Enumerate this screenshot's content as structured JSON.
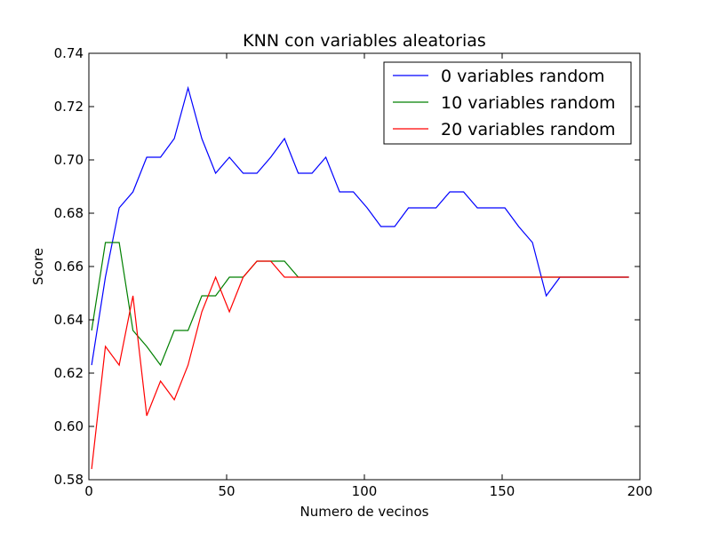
{
  "chart_data": {
    "type": "line",
    "title": "KNN con variables aleatorias",
    "xlabel": "Numero de vecinos",
    "ylabel": "Score",
    "xlim": [
      0,
      200
    ],
    "ylim": [
      0.58,
      0.74
    ],
    "xticks": [
      0,
      50,
      100,
      150,
      200
    ],
    "yticks": [
      0.58,
      0.6,
      0.62,
      0.64,
      0.66,
      0.68,
      0.7,
      0.72,
      0.74
    ],
    "xtick_labels": [
      "0",
      "50",
      "100",
      "150",
      "200"
    ],
    "ytick_labels": [
      "0.58",
      "0.60",
      "0.62",
      "0.64",
      "0.66",
      "0.68",
      "0.70",
      "0.72",
      "0.74"
    ],
    "grid": false,
    "legend_position": "top-right",
    "x": [
      1,
      6,
      11,
      16,
      21,
      26,
      31,
      36,
      41,
      46,
      51,
      56,
      61,
      66,
      71,
      76,
      81,
      86,
      91,
      96,
      101,
      106,
      111,
      116,
      121,
      126,
      131,
      136,
      141,
      146,
      151,
      156,
      161,
      166,
      171,
      176,
      181,
      186,
      191,
      196
    ],
    "series": [
      {
        "name": "0 variables random",
        "color": "#0000ff",
        "values": [
          0.623,
          0.656,
          0.682,
          0.688,
          0.701,
          0.701,
          0.708,
          0.727,
          0.708,
          0.695,
          0.701,
          0.695,
          0.695,
          0.701,
          0.708,
          0.695,
          0.695,
          0.701,
          0.688,
          0.688,
          0.682,
          0.675,
          0.675,
          0.682,
          0.682,
          0.682,
          0.688,
          0.688,
          0.682,
          0.682,
          0.682,
          0.675,
          0.669,
          0.649,
          0.656,
          0.656,
          0.656,
          0.656,
          0.656,
          0.656
        ]
      },
      {
        "name": "10 variables random",
        "color": "#008000",
        "values": [
          0.636,
          0.669,
          0.669,
          0.636,
          0.63,
          0.623,
          0.636,
          0.636,
          0.649,
          0.649,
          0.656,
          0.656,
          0.662,
          0.662,
          0.662,
          0.656,
          0.656,
          0.656,
          0.656,
          0.656,
          0.656,
          0.656,
          0.656,
          0.656,
          0.656,
          0.656,
          0.656,
          0.656,
          0.656,
          0.656,
          0.656,
          0.656,
          0.656,
          0.656,
          0.656,
          0.656,
          0.656,
          0.656,
          0.656,
          0.656
        ]
      },
      {
        "name": "20 variables random",
        "color": "#ff0000",
        "values": [
          0.584,
          0.63,
          0.623,
          0.649,
          0.604,
          0.617,
          0.61,
          0.623,
          0.643,
          0.656,
          0.643,
          0.656,
          0.662,
          0.662,
          0.656,
          0.656,
          0.656,
          0.656,
          0.656,
          0.656,
          0.656,
          0.656,
          0.656,
          0.656,
          0.656,
          0.656,
          0.656,
          0.656,
          0.656,
          0.656,
          0.656,
          0.656,
          0.656,
          0.656,
          0.656,
          0.656,
          0.656,
          0.656,
          0.656,
          0.656
        ]
      }
    ]
  }
}
